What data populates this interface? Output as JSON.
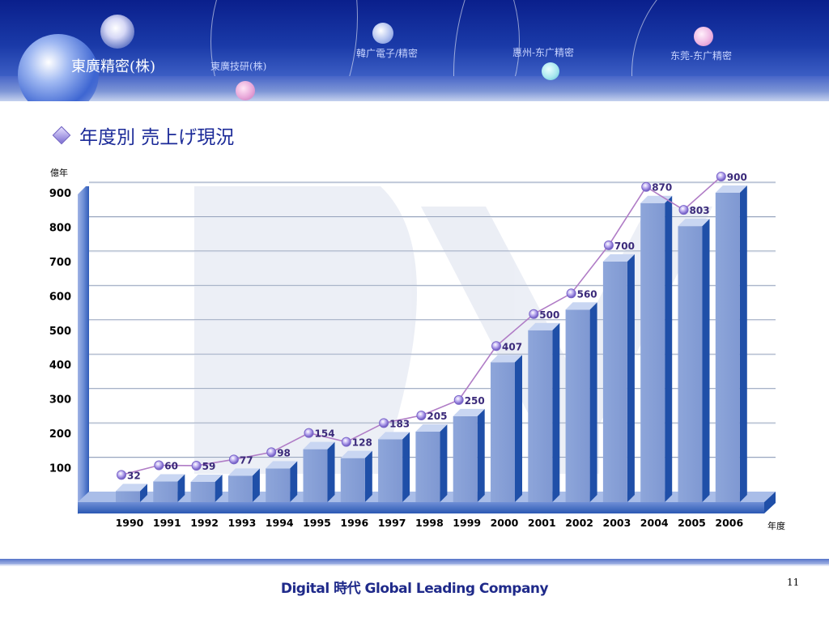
{
  "header": {
    "company": "東廣精密(株)",
    "labels": [
      "東廣技研(株)",
      "韓广電子/精密",
      "惠州-东广精密",
      "东莞-东广精密"
    ]
  },
  "page_title": "年度別 売上げ現況",
  "footer": {
    "tagline": "Digital 時代 Global Leading Company",
    "page_number": "11"
  },
  "colors": {
    "bar": "#8aa2d6",
    "bar_side": "#1f4fa8",
    "bar_top": "#c9d6f2",
    "line": "#b07cc6",
    "marker": "#7b66c9"
  },
  "chart_data": {
    "type": "bar",
    "categories": [
      "1990",
      "1991",
      "1992",
      "1993",
      "1994",
      "1995",
      "1996",
      "1997",
      "1998",
      "1999",
      "2000",
      "2001",
      "2002",
      "2003",
      "2004",
      "2005",
      "2006"
    ],
    "values": [
      32,
      60,
      59,
      77,
      98,
      154,
      128,
      183,
      205,
      250,
      407,
      500,
      560,
      700,
      870,
      803,
      900
    ],
    "data_labels": [
      "32",
      "60",
      "59",
      "77",
      "98",
      "154",
      "128",
      "183",
      "205",
      "250",
      "407",
      "500",
      "560",
      "700",
      "870",
      "803",
      "900"
    ],
    "yticks": [
      "100",
      "200",
      "300",
      "400",
      "500",
      "600",
      "700",
      "800",
      "900"
    ],
    "ylabel": "億年",
    "xlabel": "年度",
    "ylim": [
      0,
      900
    ],
    "grid": true,
    "overlay_line": true
  }
}
